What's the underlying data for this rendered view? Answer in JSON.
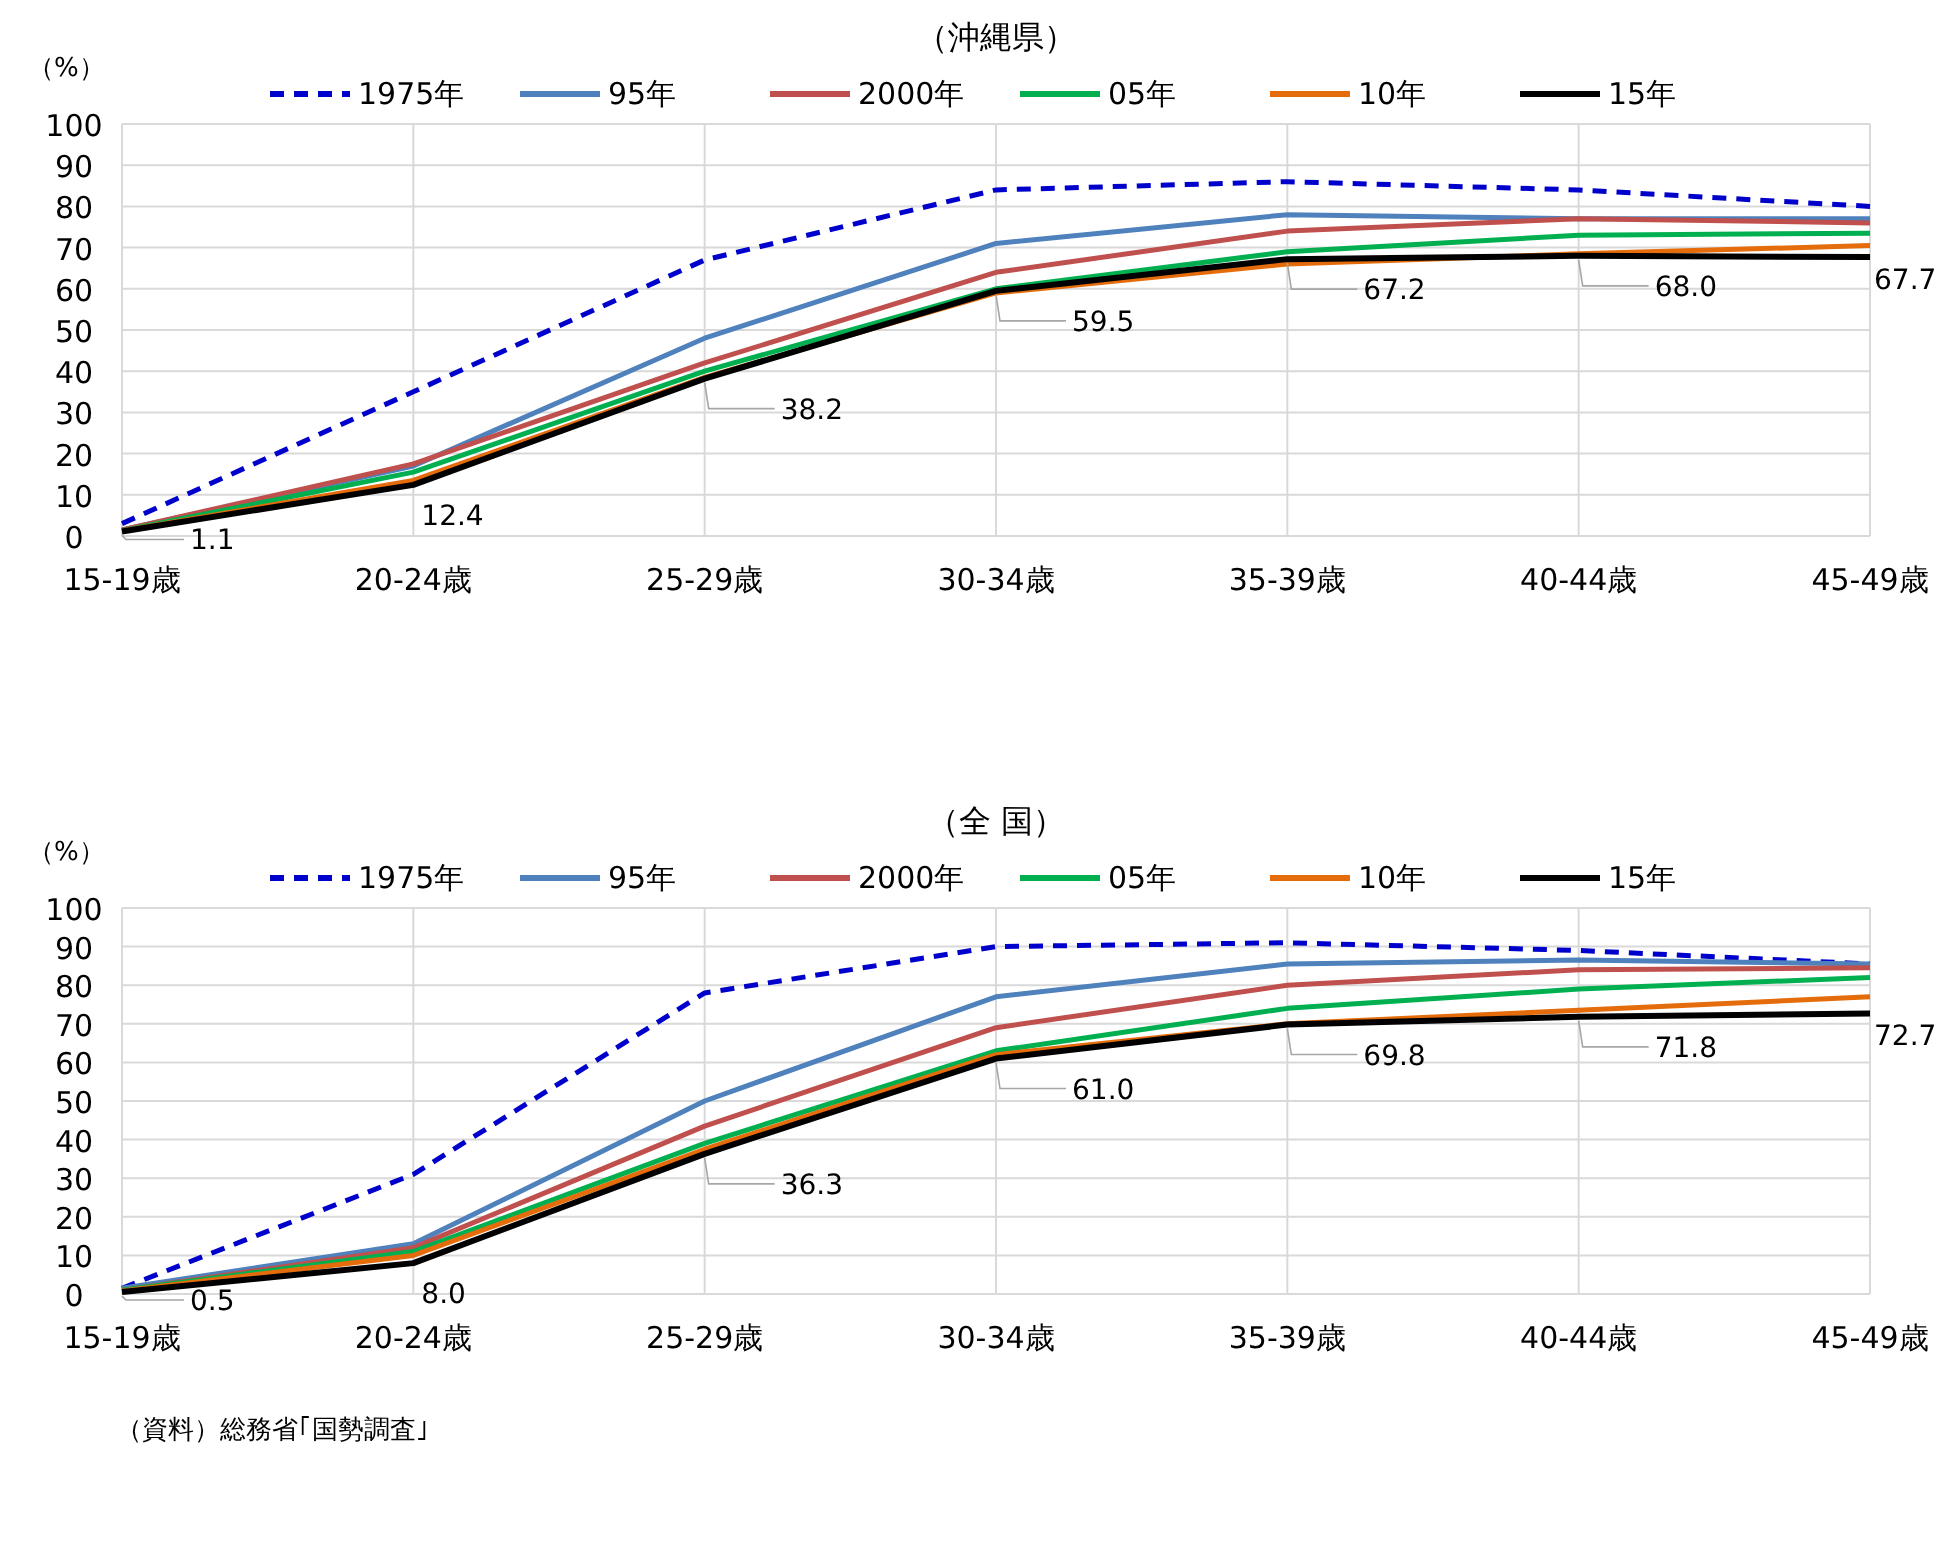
{
  "chart_data": [
    {
      "type": "line",
      "title": "（沖縄県）",
      "ylabel": "（%）",
      "categories": [
        "15-19歳",
        "20-24歳",
        "25-29歳",
        "30-34歳",
        "35-39歳",
        "40-44歳",
        "45-49歳"
      ],
      "ylim": [
        0,
        100
      ],
      "yticks": [
        0,
        10,
        20,
        30,
        40,
        50,
        60,
        70,
        80,
        90,
        100
      ],
      "grid": true,
      "legend": "top",
      "marker": "none",
      "series": [
        {
          "name": "1975年",
          "color": "#0000cc",
          "line_style": "dashed",
          "values": [
            3,
            35,
            67,
            84,
            86,
            84,
            80
          ]
        },
        {
          "name": "95年",
          "color": "#4f81bd",
          "values": [
            1.5,
            17,
            48,
            71,
            78,
            77,
            77
          ]
        },
        {
          "name": "2000年",
          "color": "#c0504d",
          "values": [
            1.5,
            17.5,
            42,
            64,
            74,
            77,
            76
          ]
        },
        {
          "name": "05年",
          "color": "#00b050",
          "values": [
            1.3,
            15.5,
            40,
            60,
            69,
            73,
            73.5
          ]
        },
        {
          "name": "10年",
          "color": "#e46c0a",
          "values": [
            1.2,
            13.5,
            38.5,
            59,
            66,
            68.5,
            70.5
          ]
        },
        {
          "name": "15年",
          "color": "#000000",
          "values": [
            1.1,
            12.4,
            38.2,
            59.5,
            67.2,
            68.0,
            67.7
          ],
          "value_labels": [
            "1.1",
            "12.4",
            "38.2",
            "59.5",
            "67.2",
            "68.0",
            "67.7"
          ]
        }
      ]
    },
    {
      "type": "line",
      "title": "（全 国）",
      "ylabel": "（%）",
      "categories": [
        "15-19歳",
        "20-24歳",
        "25-29歳",
        "30-34歳",
        "35-39歳",
        "40-44歳",
        "45-49歳"
      ],
      "ylim": [
        0,
        100
      ],
      "yticks": [
        0,
        10,
        20,
        30,
        40,
        50,
        60,
        70,
        80,
        90,
        100
      ],
      "grid": true,
      "legend": "top",
      "marker": "none",
      "annotations": [
        "（資料）総務省｢国勢調査｣"
      ],
      "series": [
        {
          "name": "1975年",
          "color": "#0000cc",
          "line_style": "dashed",
          "values": [
            1.5,
            31,
            78,
            90,
            91,
            89,
            85.5
          ]
        },
        {
          "name": "95年",
          "color": "#4f81bd",
          "values": [
            1.5,
            13,
            50,
            77,
            85.5,
            86.5,
            85.5
          ]
        },
        {
          "name": "2000年",
          "color": "#c0504d",
          "values": [
            1,
            12,
            43.5,
            69,
            80,
            84,
            84.5
          ]
        },
        {
          "name": "05年",
          "color": "#00b050",
          "values": [
            1,
            11,
            39,
            63,
            74,
            79,
            82
          ]
        },
        {
          "name": "10年",
          "color": "#e46c0a",
          "values": [
            0.8,
            10,
            37.5,
            62,
            70,
            73.5,
            77
          ]
        },
        {
          "name": "15年",
          "color": "#000000",
          "values": [
            0.5,
            8.0,
            36.3,
            61.0,
            69.8,
            71.8,
            72.7
          ],
          "value_labels": [
            "0.5",
            "8.0",
            "36.3",
            "61.0",
            "69.8",
            "71.8",
            "72.7"
          ]
        }
      ]
    }
  ]
}
